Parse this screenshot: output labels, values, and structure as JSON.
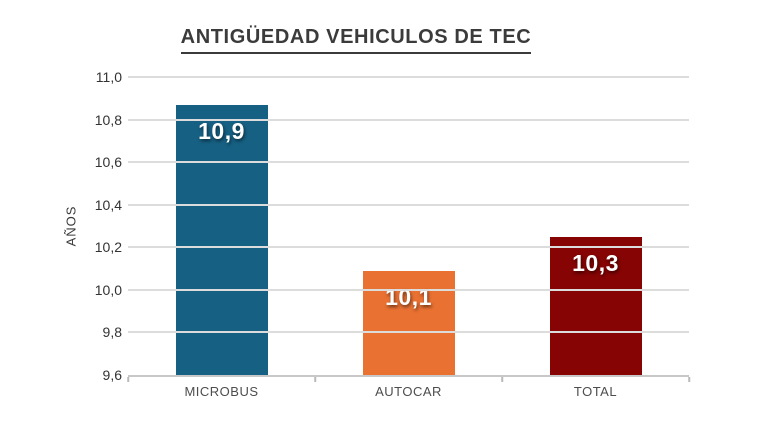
{
  "chart_data": {
    "type": "bar",
    "title": "ANTIGÜEDAD VEHICULOS DE TEC",
    "ylabel": "AÑOS",
    "xlabel": "",
    "categories": [
      "MICROBUS",
      "AUTOCAR",
      "TOTAL"
    ],
    "values": [
      10.87,
      10.09,
      10.25
    ],
    "bar_value_labels": [
      "10,9",
      "10,1",
      "10,3"
    ],
    "bar_colors": [
      "#166083",
      "#E97132",
      "#860404"
    ],
    "ylim": [
      9.6,
      11.0
    ],
    "ytick_values": [
      11.0,
      10.8,
      10.6,
      10.4,
      10.2,
      10.0,
      9.8,
      9.6
    ],
    "ytick_labels": [
      "11,0",
      "10,8",
      "10,6",
      "10,4",
      "10,2",
      "10,0",
      "9,8",
      "9,6"
    ],
    "grid": "horizontal",
    "legend": "none"
  },
  "colors": {
    "background": "#FFFFFF",
    "gridline": "#DCDCDC",
    "axis_line": "#C8C8C8",
    "tick_mark": "#B9B9B9",
    "title_text": "#3B3B3B",
    "ytick_text": "#333333",
    "category_text": "#4D4D4D",
    "bar_value_text": "#FFFFFF"
  }
}
